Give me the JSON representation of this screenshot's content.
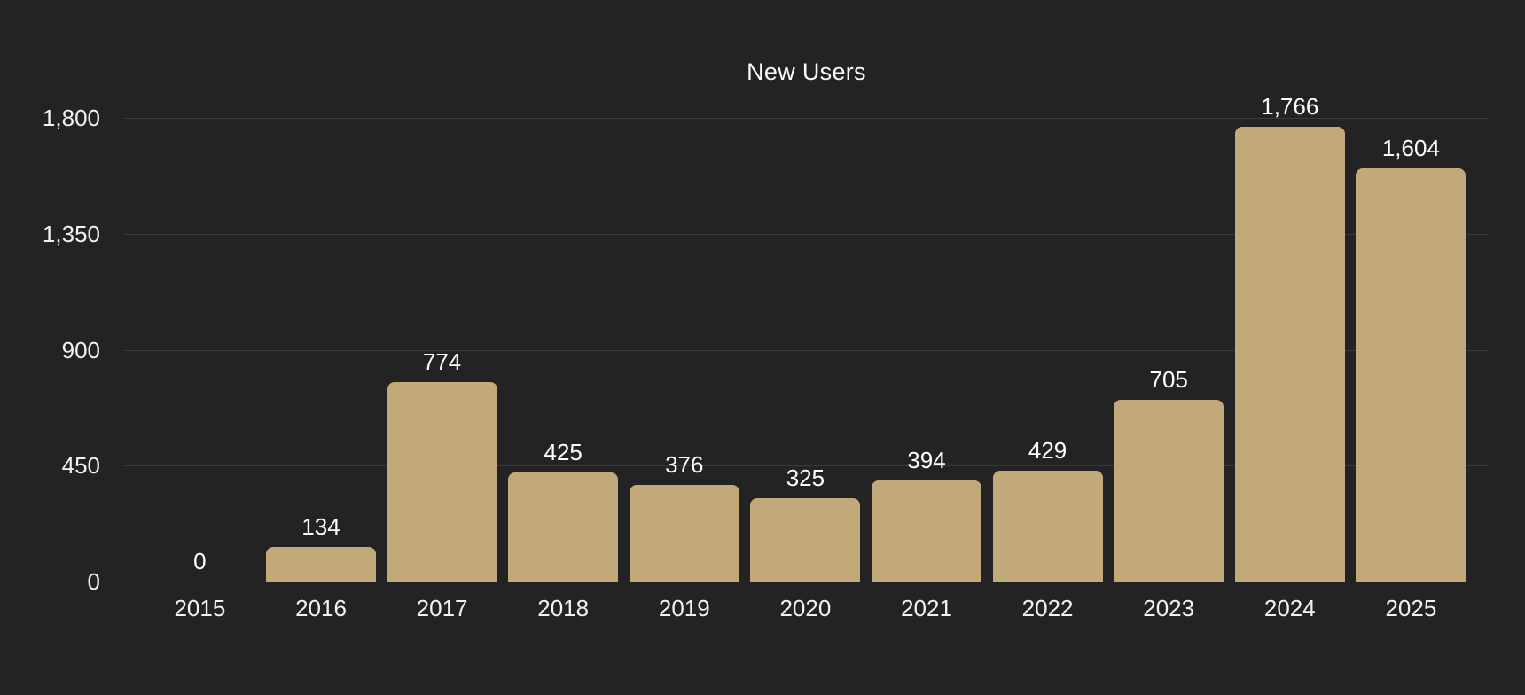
{
  "chart_data": {
    "type": "bar",
    "title": "New Users",
    "categories": [
      "2015",
      "2016",
      "2017",
      "2018",
      "2019",
      "2020",
      "2021",
      "2022",
      "2023",
      "2024",
      "2025"
    ],
    "values": [
      0,
      134,
      774,
      425,
      376,
      325,
      394,
      429,
      705,
      1766,
      1604
    ],
    "value_labels": [
      "0",
      "134",
      "774",
      "425",
      "376",
      "325",
      "394",
      "429",
      "705",
      "1,766",
      "1,604"
    ],
    "xlabel": "",
    "ylabel": "",
    "ylim": [
      0,
      1800
    ],
    "y_ticks": [
      0,
      450,
      900,
      1350,
      1800
    ],
    "y_tick_labels": [
      "0",
      "450",
      "900",
      "1,350",
      "1,800"
    ],
    "grid": "horizontal-only",
    "legend_position": "none",
    "colors": {
      "background": "#232323",
      "bar_fill": "#c3a979",
      "gridline": "#3a3a3c",
      "title_text": "#fbfbfb",
      "tick_text": "#f2f2f2",
      "value_label_text": "#ffffff"
    }
  }
}
